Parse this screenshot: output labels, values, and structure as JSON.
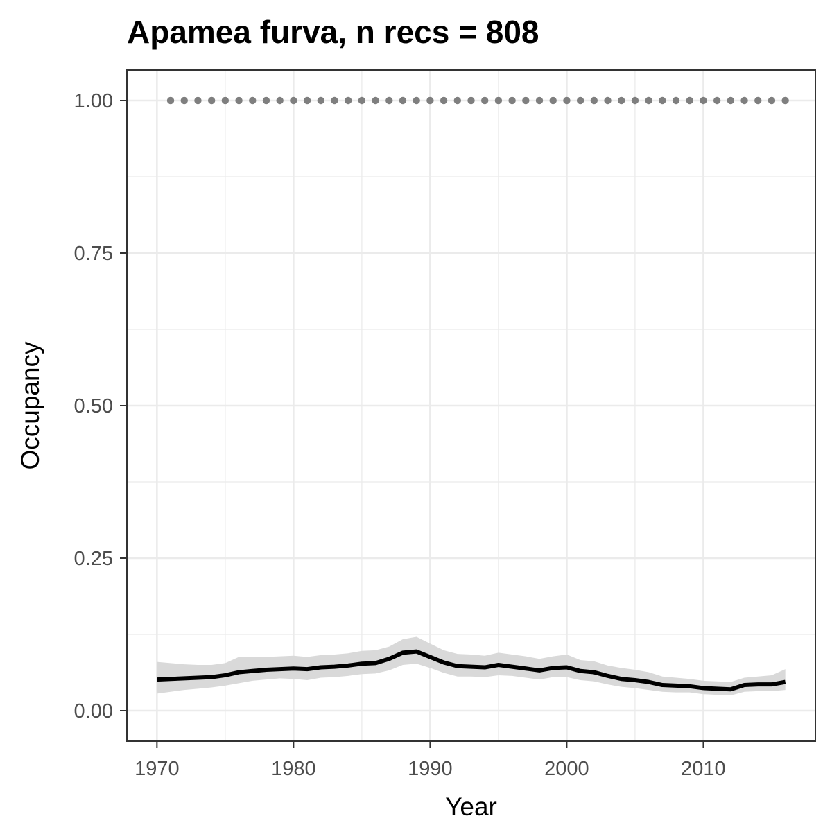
{
  "chart_data": {
    "type": "line",
    "title": "Apamea furva, n recs = 808",
    "xlabel": "Year",
    "ylabel": "Occupancy",
    "xlim": [
      1967.8,
      2018.2
    ],
    "ylim": [
      -0.05,
      1.05
    ],
    "x_ticks": [
      1970,
      1980,
      1990,
      2000,
      2010
    ],
    "x_tick_labels": [
      "1970",
      "1980",
      "1990",
      "2000",
      "2010"
    ],
    "y_ticks": [
      0,
      0.25,
      0.5,
      0.75,
      1
    ],
    "y_tick_labels": [
      "0.00",
      "0.25",
      "0.50",
      "0.75",
      "1.00"
    ],
    "grid": true,
    "colors": {
      "line": "#000000",
      "ribbon": "#d9d9d9",
      "points": "#7f7f7f"
    },
    "x": [
      1970,
      1971,
      1972,
      1973,
      1974,
      1975,
      1976,
      1977,
      1978,
      1979,
      1980,
      1981,
      1982,
      1983,
      1984,
      1985,
      1986,
      1987,
      1988,
      1989,
      1990,
      1991,
      1992,
      1993,
      1994,
      1995,
      1996,
      1997,
      1998,
      1999,
      2000,
      2001,
      2002,
      2003,
      2004,
      2005,
      2006,
      2007,
      2008,
      2009,
      2010,
      2011,
      2012,
      2013,
      2014,
      2015,
      2016
    ],
    "series": [
      {
        "type": "line",
        "values": [
          0.051,
          0.052,
          0.053,
          0.054,
          0.055,
          0.058,
          0.063,
          0.065,
          0.067,
          0.068,
          0.069,
          0.068,
          0.071,
          0.072,
          0.074,
          0.077,
          0.078,
          0.085,
          0.095,
          0.097,
          0.088,
          0.079,
          0.073,
          0.072,
          0.071,
          0.075,
          0.072,
          0.069,
          0.066,
          0.07,
          0.071,
          0.065,
          0.063,
          0.057,
          0.052,
          0.05,
          0.047,
          0.042,
          0.041,
          0.04,
          0.037,
          0.036,
          0.035,
          0.042,
          0.043,
          0.043,
          0.047
        ],
        "lower": [
          0.028,
          0.031,
          0.034,
          0.036,
          0.038,
          0.041,
          0.045,
          0.049,
          0.051,
          0.053,
          0.052,
          0.05,
          0.054,
          0.055,
          0.057,
          0.06,
          0.061,
          0.066,
          0.075,
          0.077,
          0.07,
          0.062,
          0.056,
          0.056,
          0.055,
          0.058,
          0.057,
          0.054,
          0.051,
          0.055,
          0.055,
          0.05,
          0.048,
          0.043,
          0.039,
          0.037,
          0.034,
          0.031,
          0.03,
          0.03,
          0.027,
          0.026,
          0.025,
          0.031,
          0.032,
          0.032,
          0.034
        ],
        "upper": [
          0.08,
          0.078,
          0.076,
          0.075,
          0.075,
          0.078,
          0.088,
          0.088,
          0.088,
          0.089,
          0.09,
          0.088,
          0.091,
          0.092,
          0.094,
          0.098,
          0.099,
          0.105,
          0.117,
          0.121,
          0.11,
          0.099,
          0.093,
          0.092,
          0.09,
          0.095,
          0.092,
          0.089,
          0.085,
          0.089,
          0.092,
          0.083,
          0.081,
          0.074,
          0.07,
          0.067,
          0.063,
          0.056,
          0.054,
          0.052,
          0.049,
          0.048,
          0.047,
          0.054,
          0.056,
          0.058,
          0.068
        ]
      },
      {
        "type": "points",
        "x": [
          1971,
          1972,
          1973,
          1974,
          1975,
          1976,
          1977,
          1978,
          1979,
          1980,
          1981,
          1982,
          1983,
          1984,
          1985,
          1986,
          1987,
          1988,
          1989,
          1990,
          1991,
          1992,
          1993,
          1994,
          1995,
          1996,
          1997,
          1998,
          1999,
          2000,
          2001,
          2002,
          2003,
          2004,
          2005,
          2006,
          2007,
          2008,
          2009,
          2010,
          2011,
          2012,
          2013,
          2014,
          2015,
          2016
        ],
        "values": [
          1,
          1,
          1,
          1,
          1,
          1,
          1,
          1,
          1,
          1,
          1,
          1,
          1,
          1,
          1,
          1,
          1,
          1,
          1,
          1,
          1,
          1,
          1,
          1,
          1,
          1,
          1,
          1,
          1,
          1,
          1,
          1,
          1,
          1,
          1,
          1,
          1,
          1,
          1,
          1,
          1,
          1,
          1,
          1,
          1,
          1
        ]
      }
    ]
  }
}
